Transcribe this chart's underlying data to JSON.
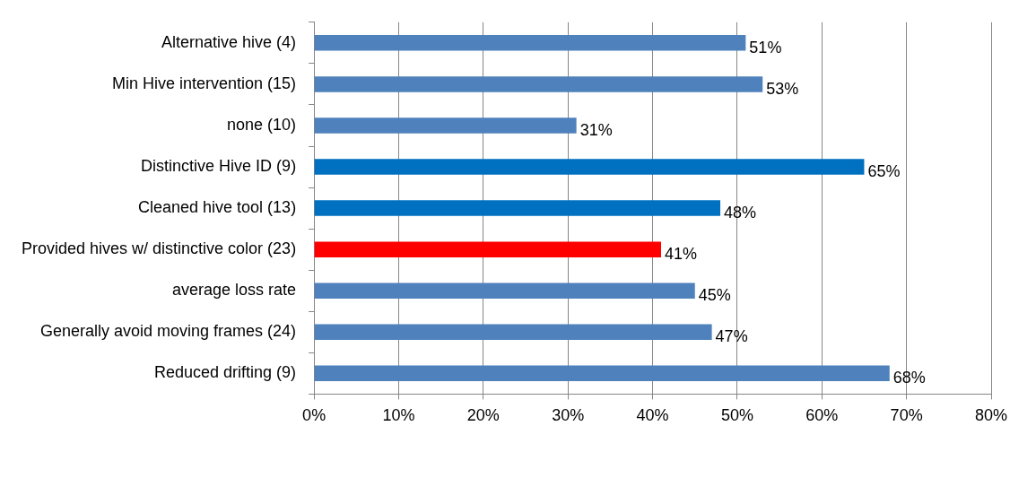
{
  "chart_data": {
    "type": "bar",
    "orientation": "horizontal",
    "categories": [
      "Alternative hive (4)",
      "Min Hive intervention (15)",
      "none (10)",
      "Distinctive Hive ID (9)",
      "Cleaned hive tool (13)",
      "Provided hives w/ distinctive color (23)",
      "average loss rate",
      "Generally avoid moving frames (24)",
      "Reduced drifting (9)"
    ],
    "values": [
      51,
      53,
      31,
      65,
      48,
      41,
      45,
      47,
      68
    ],
    "colors": [
      "#4f81bd",
      "#4f81bd",
      "#4f81bd",
      "#0070c0",
      "#0070c0",
      "#ff0000",
      "#4f81bd",
      "#4f81bd",
      "#4f81bd"
    ],
    "value_labels": [
      "51%",
      "53%",
      "31%",
      "65%",
      "48%",
      "41%",
      "45%",
      "47%",
      "68%"
    ],
    "xlim": [
      0,
      80
    ],
    "xticks": [
      {
        "value": 0,
        "label": "0%"
      },
      {
        "value": 10,
        "label": "10%"
      },
      {
        "value": 20,
        "label": "20%"
      },
      {
        "value": 30,
        "label": "30%"
      },
      {
        "value": 40,
        "label": "40%"
      },
      {
        "value": 50,
        "label": "50%"
      },
      {
        "value": 60,
        "label": "60%"
      },
      {
        "value": 70,
        "label": "70%"
      },
      {
        "value": 80,
        "label": "80%"
      }
    ],
    "grid": "x"
  }
}
